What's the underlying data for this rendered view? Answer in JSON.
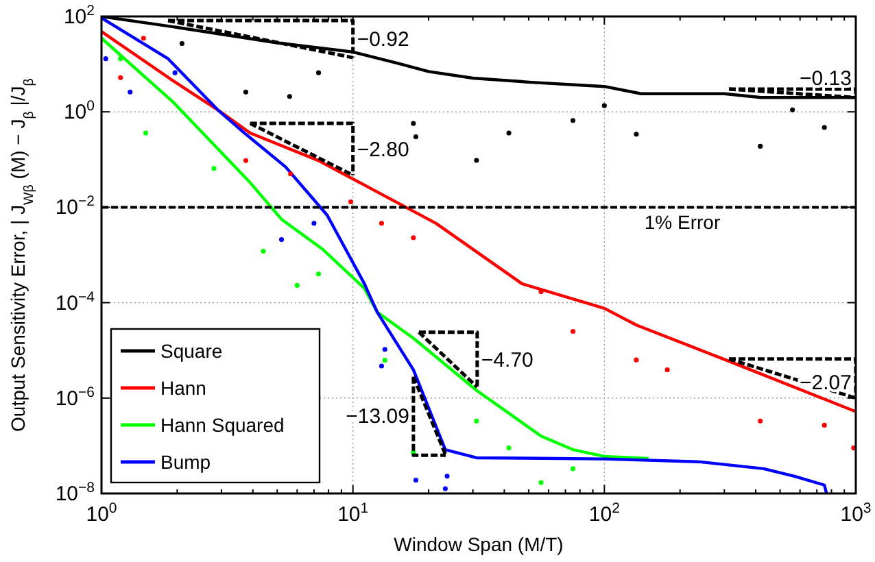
{
  "chart_data": {
    "type": "line",
    "xlabel": "Window Span (M/T)",
    "ylabel": "Output Sensitivity Error, | J$_{Wβ}$(M) − J$_{β}$ |/J$_{β}$",
    "log": "xy",
    "grid": true,
    "legend": "bottom left",
    "marker": "none",
    "xlim": [
      1,
      1000
    ],
    "ylim": [
      1e-08,
      100
    ],
    "xticks": [
      {
        "value": 1,
        "label": "10$^{0}$"
      },
      {
        "value": 2,
        "label": null
      },
      {
        "value": 3,
        "label": null
      },
      {
        "value": 4,
        "label": null
      },
      {
        "value": 5,
        "label": null
      },
      {
        "value": 6,
        "label": null
      },
      {
        "value": 7,
        "label": null
      },
      {
        "value": 8,
        "label": null
      },
      {
        "value": 9,
        "label": null
      },
      {
        "value": 10,
        "label": "10$^{1}$"
      },
      {
        "value": 20,
        "label": null
      },
      {
        "value": 30,
        "label": null
      },
      {
        "value": 40,
        "label": null
      },
      {
        "value": 50,
        "label": null
      },
      {
        "value": 60,
        "label": null
      },
      {
        "value": 70,
        "label": null
      },
      {
        "value": 80,
        "label": null
      },
      {
        "value": 90,
        "label": null
      },
      {
        "value": 100,
        "label": "10$^{2}$"
      },
      {
        "value": 200,
        "label": null
      },
      {
        "value": 300,
        "label": null
      },
      {
        "value": 400,
        "label": null
      },
      {
        "value": 500,
        "label": null
      },
      {
        "value": 600,
        "label": null
      },
      {
        "value": 700,
        "label": null
      },
      {
        "value": 800,
        "label": null
      },
      {
        "value": 900,
        "label": null
      },
      {
        "value": 1000,
        "label": "10$^{3}$"
      }
    ],
    "yticks": [
      {
        "value": 1e-08,
        "label": "10$^{−8}$"
      },
      {
        "value": 1e-06,
        "label": "10$^{−6}$"
      },
      {
        "value": 0.0001,
        "label": "10$^{−4}$"
      },
      {
        "value": 0.01,
        "label": "10$^{−2}$"
      },
      {
        "value": 1,
        "label": "10$^{0}$"
      },
      {
        "value": 100,
        "label": "10$^{2}$"
      }
    ],
    "ref_lines": [
      {
        "axis": "y",
        "value": 0.01,
        "label": "1% Error",
        "color": "#000000",
        "line_style": "dashed"
      }
    ],
    "annotations": [
      "−0.92",
      "−0.13",
      "−2.80",
      "−4.70",
      "−13.09",
      "−2.07"
    ],
    "series": [
      {
        "name": "Square",
        "color": "#000000",
        "x": [
          1,
          2,
          5,
          10,
          15,
          20,
          30,
          50,
          100,
          140,
          300,
          420,
          1000
        ],
        "values": [
          100,
          59,
          28,
          18,
          10.5,
          7,
          5.1,
          4.2,
          3.4,
          2.4,
          2.4,
          2.0,
          2.0
        ]
      },
      {
        "name": "Hann",
        "color": "#ff0000",
        "x": [
          1,
          1.89,
          2.9,
          3.9,
          7.3,
          21.4,
          47,
          100,
          134,
          306,
          1000
        ],
        "values": [
          48,
          4.8,
          1.1,
          0.36,
          0.095,
          0.0046,
          0.00025,
          7.6e-05,
          3.4e-05,
          6.2e-06,
          5.2e-07
        ]
      },
      {
        "name": "Hann Squared",
        "color": "#00ff00",
        "x": [
          1,
          1.94,
          3.9,
          5.2,
          7.6,
          11.1,
          12.5,
          17.4,
          31,
          56,
          75,
          100,
          150
        ],
        "values": [
          35,
          1.55,
          0.033,
          0.0056,
          0.0013,
          0.0002,
          6.3e-05,
          1.8e-05,
          1.45e-06,
          1.6e-07,
          8.3e-08,
          6e-08,
          5.4e-08
        ]
      },
      {
        "name": "Bump",
        "color": "#0000ff",
        "x": [
          1,
          1.84,
          2.9,
          3.75,
          5.4,
          7.9,
          11.1,
          12.5,
          17.4,
          23.3,
          31,
          100,
          240,
          430,
          570,
          750,
          765
        ],
        "values": [
          93,
          13,
          1.1,
          0.34,
          0.07,
          0.0068,
          0.00025,
          6.3e-05,
          3.9e-06,
          8.3e-08,
          5.6e-08,
          5.3e-08,
          4.6e-08,
          3.3e-08,
          2.3e-08,
          1.5e-08,
          1e-08
        ]
      },
      {
        "type": "scatter",
        "marker": "circle",
        "color": "#000000",
        "x": [
          2.09,
          3.75,
          5.6,
          7.3,
          17.4,
          17.8,
          31,
          41.7,
          75,
          100,
          134,
          417,
          560,
          750
        ],
        "values": [
          27,
          2.6,
          2.1,
          6.6,
          0.57,
          0.3,
          0.096,
          0.36,
          0.66,
          1.35,
          0.34,
          0.19,
          1.1,
          0.47
        ]
      },
      {
        "type": "scatter",
        "marker": "circle",
        "color": "#ff0000",
        "x": [
          1.47,
          1.19,
          3.75,
          5.65,
          9.8,
          13,
          17.4,
          56,
          75,
          134,
          178,
          417,
          750,
          980
        ],
        "values": [
          35,
          5.2,
          0.095,
          0.05,
          0.013,
          0.0046,
          0.0023,
          0.00017,
          2.5e-05,
          6.3e-06,
          3.9e-06,
          3.3e-07,
          2.7e-07,
          9e-08
        ]
      },
      {
        "type": "scatter",
        "marker": "circle",
        "color": "#00ff00",
        "x": [
          1.19,
          1.5,
          2.8,
          4.4,
          7.3,
          6,
          13.4,
          17.4,
          31,
          41.7,
          56,
          75
        ],
        "values": [
          13,
          0.36,
          0.065,
          0.0012,
          0.0004,
          0.00023,
          6.2e-06,
          7.2e-08,
          3.3e-07,
          9e-08,
          1.7e-08,
          3.3e-08
        ]
      },
      {
        "type": "scatter",
        "marker": "circle",
        "color": "#0000ff",
        "x": [
          1.04,
          1.3,
          1.96,
          5.2,
          7,
          13,
          13.4,
          17.8,
          23.7,
          23.3
        ],
        "values": [
          13,
          2.6,
          6.6,
          0.0021,
          0.0046,
          4.7e-06,
          1.05e-05,
          1.9e-08,
          2.3e-08,
          1.26e-08
        ]
      },
      {
        "color": "#000000",
        "line_style": "dashed",
        "x": [
          1.84,
          10,
          10
        ],
        "values": [
          82,
          82,
          13.7
        ]
      },
      {
        "color": "#000000",
        "line_style": "dashed",
        "x": [
          313,
          1000,
          1000
        ],
        "values": [
          3.0,
          3.0,
          2.0
        ]
      },
      {
        "color": "#000000",
        "line_style": "dashed",
        "x": [
          3.9,
          10,
          10
        ],
        "values": [
          0.575,
          0.575,
          0.047
        ]
      },
      {
        "color": "#000000",
        "line_style": "dashed",
        "x": [
          18.3,
          31.2,
          31.2
        ],
        "values": [
          2.4e-05,
          2.4e-05,
          1.7e-06
        ]
      },
      {
        "color": "#000000",
        "line_style": "dashed",
        "x": [
          17.4,
          17.4,
          23.4
        ],
        "values": [
          2.8e-06,
          6.3e-08,
          6.3e-08
        ]
      },
      {
        "color": "#000000",
        "line_style": "dashed",
        "x": [
          313,
          1000,
          1000
        ],
        "values": [
          6.6e-06,
          6.6e-06,
          1e-06
        ]
      },
      {
        "color": "#000000",
        "line_style": "dashed",
        "x": [
          1.84,
          10
        ],
        "values": [
          82,
          13.7
        ]
      },
      {
        "color": "#000000",
        "line_style": "dashed",
        "x": [
          313,
          1000
        ],
        "values": [
          3.0,
          2.0
        ]
      },
      {
        "color": "#000000",
        "line_style": "dashed",
        "x": [
          3.9,
          10
        ],
        "values": [
          0.575,
          0.047
        ]
      },
      {
        "color": "#000000",
        "line_style": "dashed",
        "x": [
          18.3,
          31.2
        ],
        "values": [
          2.4e-05,
          1.7e-06
        ]
      },
      {
        "color": "#000000",
        "line_style": "dashed",
        "x": [
          17.4,
          23.4
        ],
        "values": [
          2.8e-06,
          6.3e-08
        ]
      },
      {
        "color": "#000000",
        "line_style": "dashed",
        "x": [
          313,
          1000
        ],
        "values": [
          6.6e-06,
          1e-06
        ]
      }
    ]
  }
}
